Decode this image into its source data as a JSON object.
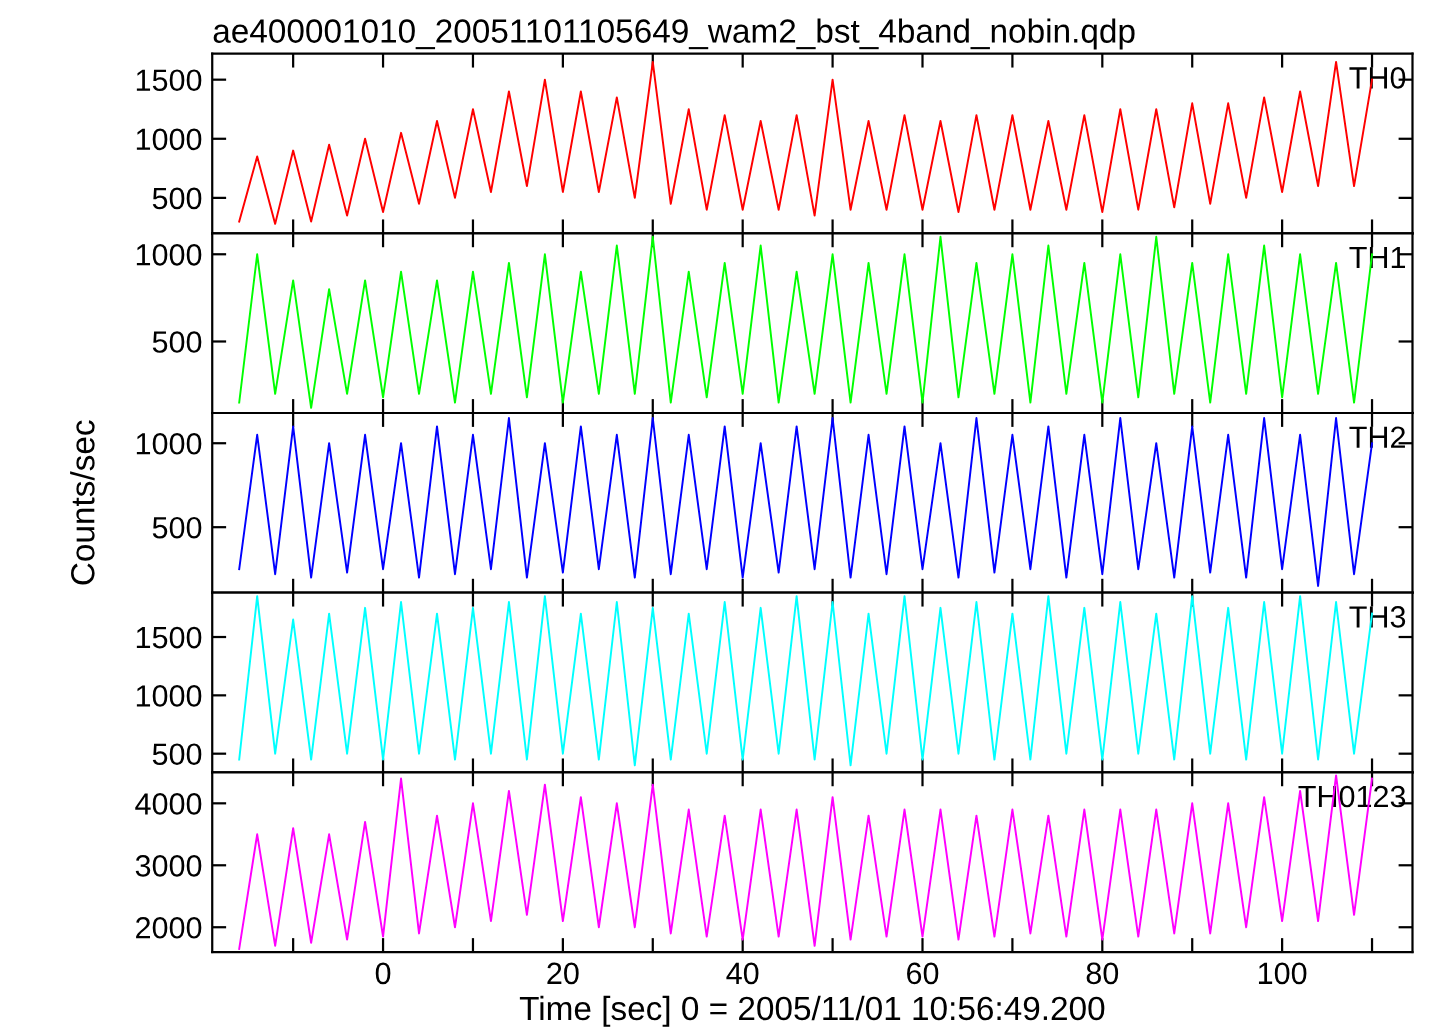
{
  "chart_data": [
    {
      "type": "line",
      "title": "ae400001010_20051101105649_wam2_bst_4band_nobin.qdp",
      "tick_labels": "y",
      "xlim": [
        -19,
        114.5
      ],
      "xticks": [
        {
          "value": -10,
          "label": null
        },
        {
          "value": 0,
          "label": null
        },
        {
          "value": 10,
          "label": null
        },
        {
          "value": 20,
          "label": null
        },
        {
          "value": 30,
          "label": null
        },
        {
          "value": 40,
          "label": null
        },
        {
          "value": 50,
          "label": null
        },
        {
          "value": 60,
          "label": null
        },
        {
          "value": 70,
          "label": null
        },
        {
          "value": 80,
          "label": null
        },
        {
          "value": 90,
          "label": null
        },
        {
          "value": 100,
          "label": null
        },
        {
          "value": 110,
          "label": null
        }
      ],
      "ylim": [
        200,
        1720
      ],
      "yticks": [
        500,
        1000,
        1500
      ],
      "x": [
        -16,
        -14,
        -12,
        -10,
        -8,
        -6,
        -4,
        -2,
        0,
        2,
        4,
        6,
        8,
        10,
        12,
        14,
        16,
        18,
        20,
        22,
        24,
        26,
        28,
        30,
        32,
        34,
        36,
        38,
        40,
        42,
        44,
        46,
        48,
        50,
        52,
        54,
        56,
        58,
        60,
        62,
        64,
        66,
        68,
        70,
        72,
        74,
        76,
        78,
        80,
        82,
        84,
        86,
        88,
        90,
        92,
        94,
        96,
        98,
        100,
        102,
        104,
        106,
        108,
        110
      ],
      "series": [
        {
          "name": "TH0",
          "color": "#ff0000",
          "values": [
            300,
            850,
            280,
            900,
            300,
            950,
            350,
            1000,
            380,
            1050,
            450,
            1150,
            500,
            1250,
            550,
            1400,
            600,
            1500,
            550,
            1400,
            550,
            1350,
            500,
            1650,
            450,
            1250,
            400,
            1200,
            400,
            1150,
            400,
            1200,
            350,
            1500,
            400,
            1150,
            400,
            1200,
            400,
            1150,
            380,
            1200,
            400,
            1200,
            400,
            1150,
            400,
            1200,
            380,
            1250,
            400,
            1250,
            420,
            1300,
            450,
            1300,
            500,
            1350,
            550,
            1400,
            600,
            1650,
            600,
            1500
          ]
        }
      ]
    },
    {
      "type": "line",
      "tick_labels": "y",
      "xlim": [
        -19,
        114.5
      ],
      "xticks": [
        {
          "value": -10,
          "label": null
        },
        {
          "value": 0,
          "label": null
        },
        {
          "value": 10,
          "label": null
        },
        {
          "value": 20,
          "label": null
        },
        {
          "value": 30,
          "label": null
        },
        {
          "value": 40,
          "label": null
        },
        {
          "value": 50,
          "label": null
        },
        {
          "value": 60,
          "label": null
        },
        {
          "value": 70,
          "label": null
        },
        {
          "value": 80,
          "label": null
        },
        {
          "value": 90,
          "label": null
        },
        {
          "value": 100,
          "label": null
        },
        {
          "value": 110,
          "label": null
        }
      ],
      "ylim": [
        90,
        1120
      ],
      "yticks": [
        500,
        1000
      ],
      "x": [
        -16,
        -14,
        -12,
        -10,
        -8,
        -6,
        -4,
        -2,
        0,
        2,
        4,
        6,
        8,
        10,
        12,
        14,
        16,
        18,
        20,
        22,
        24,
        26,
        28,
        30,
        32,
        34,
        36,
        38,
        40,
        42,
        44,
        46,
        48,
        50,
        52,
        54,
        56,
        58,
        60,
        62,
        64,
        66,
        68,
        70,
        72,
        74,
        76,
        78,
        80,
        82,
        84,
        86,
        88,
        90,
        92,
        94,
        96,
        98,
        100,
        102,
        104,
        106,
        108,
        110
      ],
      "series": [
        {
          "name": "TH1",
          "color": "#00ff00",
          "values": [
            150,
            1000,
            200,
            850,
            120,
            800,
            200,
            850,
            180,
            900,
            200,
            850,
            150,
            900,
            200,
            950,
            180,
            1000,
            150,
            900,
            200,
            1050,
            200,
            1100,
            150,
            900,
            180,
            950,
            200,
            1050,
            150,
            900,
            200,
            1000,
            150,
            950,
            200,
            1000,
            150,
            1100,
            180,
            950,
            200,
            1000,
            150,
            1050,
            200,
            950,
            150,
            1000,
            180,
            1100,
            200,
            950,
            150,
            1000,
            200,
            1050,
            180,
            1000,
            200,
            950,
            150,
            1000
          ]
        }
      ]
    },
    {
      "type": "line",
      "tick_labels": "y",
      "ylabel": "Counts/sec",
      "xlim": [
        -19,
        114.5
      ],
      "xticks": [
        {
          "value": -10,
          "label": null
        },
        {
          "value": 0,
          "label": null
        },
        {
          "value": 10,
          "label": null
        },
        {
          "value": 20,
          "label": null
        },
        {
          "value": 30,
          "label": null
        },
        {
          "value": 40,
          "label": null
        },
        {
          "value": 50,
          "label": null
        },
        {
          "value": 60,
          "label": null
        },
        {
          "value": 70,
          "label": null
        },
        {
          "value": 80,
          "label": null
        },
        {
          "value": 90,
          "label": null
        },
        {
          "value": 100,
          "label": null
        },
        {
          "value": 110,
          "label": null
        }
      ],
      "ylim": [
        110,
        1180
      ],
      "yticks": [
        500,
        1000
      ],
      "x": [
        -16,
        -14,
        -12,
        -10,
        -8,
        -6,
        -4,
        -2,
        0,
        2,
        4,
        6,
        8,
        10,
        12,
        14,
        16,
        18,
        20,
        22,
        24,
        26,
        28,
        30,
        32,
        34,
        36,
        38,
        40,
        42,
        44,
        46,
        48,
        50,
        52,
        54,
        56,
        58,
        60,
        62,
        64,
        66,
        68,
        70,
        72,
        74,
        76,
        78,
        80,
        82,
        84,
        86,
        88,
        90,
        92,
        94,
        96,
        98,
        100,
        102,
        104,
        106,
        108,
        110
      ],
      "series": [
        {
          "name": "TH2",
          "color": "#0000ff",
          "values": [
            250,
            1050,
            220,
            1100,
            200,
            1000,
            230,
            1050,
            250,
            1000,
            200,
            1100,
            220,
            1050,
            250,
            1150,
            200,
            1000,
            230,
            1100,
            250,
            1050,
            200,
            1150,
            220,
            1050,
            250,
            1100,
            200,
            1000,
            230,
            1100,
            250,
            1150,
            200,
            1050,
            220,
            1100,
            250,
            1000,
            200,
            1150,
            230,
            1050,
            250,
            1100,
            200,
            1050,
            220,
            1150,
            250,
            1000,
            200,
            1100,
            230,
            1050,
            200,
            1150,
            250,
            1050,
            150,
            1150,
            220,
            1000
          ]
        }
      ]
    },
    {
      "type": "line",
      "tick_labels": "y",
      "xlim": [
        -19,
        114.5
      ],
      "xticks": [
        {
          "value": -10,
          "label": null
        },
        {
          "value": 0,
          "label": null
        },
        {
          "value": 10,
          "label": null
        },
        {
          "value": 20,
          "label": null
        },
        {
          "value": 30,
          "label": null
        },
        {
          "value": 40,
          "label": null
        },
        {
          "value": 50,
          "label": null
        },
        {
          "value": 60,
          "label": null
        },
        {
          "value": 70,
          "label": null
        },
        {
          "value": 80,
          "label": null
        },
        {
          "value": 90,
          "label": null
        },
        {
          "value": 100,
          "label": null
        },
        {
          "value": 110,
          "label": null
        }
      ],
      "ylim": [
        340,
        1880
      ],
      "yticks": [
        500,
        1000,
        1500
      ],
      "x": [
        -16,
        -14,
        -12,
        -10,
        -8,
        -6,
        -4,
        -2,
        0,
        2,
        4,
        6,
        8,
        10,
        12,
        14,
        16,
        18,
        20,
        22,
        24,
        26,
        28,
        30,
        32,
        34,
        36,
        38,
        40,
        42,
        44,
        46,
        48,
        50,
        52,
        54,
        56,
        58,
        60,
        62,
        64,
        66,
        68,
        70,
        72,
        74,
        76,
        78,
        80,
        82,
        84,
        86,
        88,
        90,
        92,
        94,
        96,
        98,
        100,
        102,
        104,
        106,
        108,
        110
      ],
      "series": [
        {
          "name": "TH3",
          "color": "#00ffff",
          "values": [
            450,
            1850,
            500,
            1650,
            450,
            1700,
            500,
            1750,
            450,
            1800,
            500,
            1700,
            450,
            1750,
            500,
            1800,
            450,
            1850,
            500,
            1700,
            450,
            1800,
            400,
            1750,
            450,
            1700,
            500,
            1800,
            450,
            1750,
            500,
            1850,
            450,
            1800,
            400,
            1700,
            500,
            1850,
            450,
            1750,
            500,
            1800,
            450,
            1700,
            450,
            1850,
            500,
            1750,
            450,
            1800,
            500,
            1700,
            450,
            1850,
            500,
            1750,
            450,
            1800,
            500,
            1850,
            450,
            1800,
            500,
            1700
          ]
        }
      ]
    },
    {
      "type": "line",
      "xlabel": "Time [sec] 0 = 2005/11/01 10:56:49.200",
      "xlim": [
        -19,
        114.5
      ],
      "xticks": [
        {
          "value": -10,
          "label": null
        },
        0,
        {
          "value": 10,
          "label": null
        },
        20,
        {
          "value": 30,
          "label": null
        },
        40,
        {
          "value": 50,
          "label": null
        },
        60,
        {
          "value": 70,
          "label": null
        },
        80,
        {
          "value": 90,
          "label": null
        },
        100,
        {
          "value": 110,
          "label": null
        }
      ],
      "ylim": [
        1600,
        4500
      ],
      "yticks": [
        2000,
        3000,
        4000
      ],
      "x": [
        -16,
        -14,
        -12,
        -10,
        -8,
        -6,
        -4,
        -2,
        0,
        2,
        4,
        6,
        8,
        10,
        12,
        14,
        16,
        18,
        20,
        22,
        24,
        26,
        28,
        30,
        32,
        34,
        36,
        38,
        40,
        42,
        44,
        46,
        48,
        50,
        52,
        54,
        56,
        58,
        60,
        62,
        64,
        66,
        68,
        70,
        72,
        74,
        76,
        78,
        80,
        82,
        84,
        86,
        88,
        90,
        92,
        94,
        96,
        98,
        100,
        102,
        104,
        106,
        108,
        110
      ],
      "series": [
        {
          "name": "TH0123",
          "color": "#ff00ff",
          "values": [
            1650,
            3500,
            1700,
            3600,
            1750,
            3500,
            1800,
            3700,
            1850,
            4400,
            1900,
            3800,
            2000,
            4000,
            2100,
            4200,
            2200,
            4300,
            2100,
            4100,
            2000,
            4000,
            2000,
            4300,
            1900,
            3900,
            1850,
            3800,
            1800,
            3900,
            1850,
            3900,
            1700,
            4100,
            1800,
            3800,
            1850,
            3900,
            1850,
            3900,
            1800,
            3800,
            1850,
            3900,
            1900,
            3800,
            1850,
            3900,
            1800,
            3900,
            1850,
            3900,
            1900,
            4000,
            1900,
            4000,
            2000,
            4100,
            2100,
            4200,
            2100,
            4450,
            2200,
            4400
          ]
        }
      ]
    }
  ]
}
